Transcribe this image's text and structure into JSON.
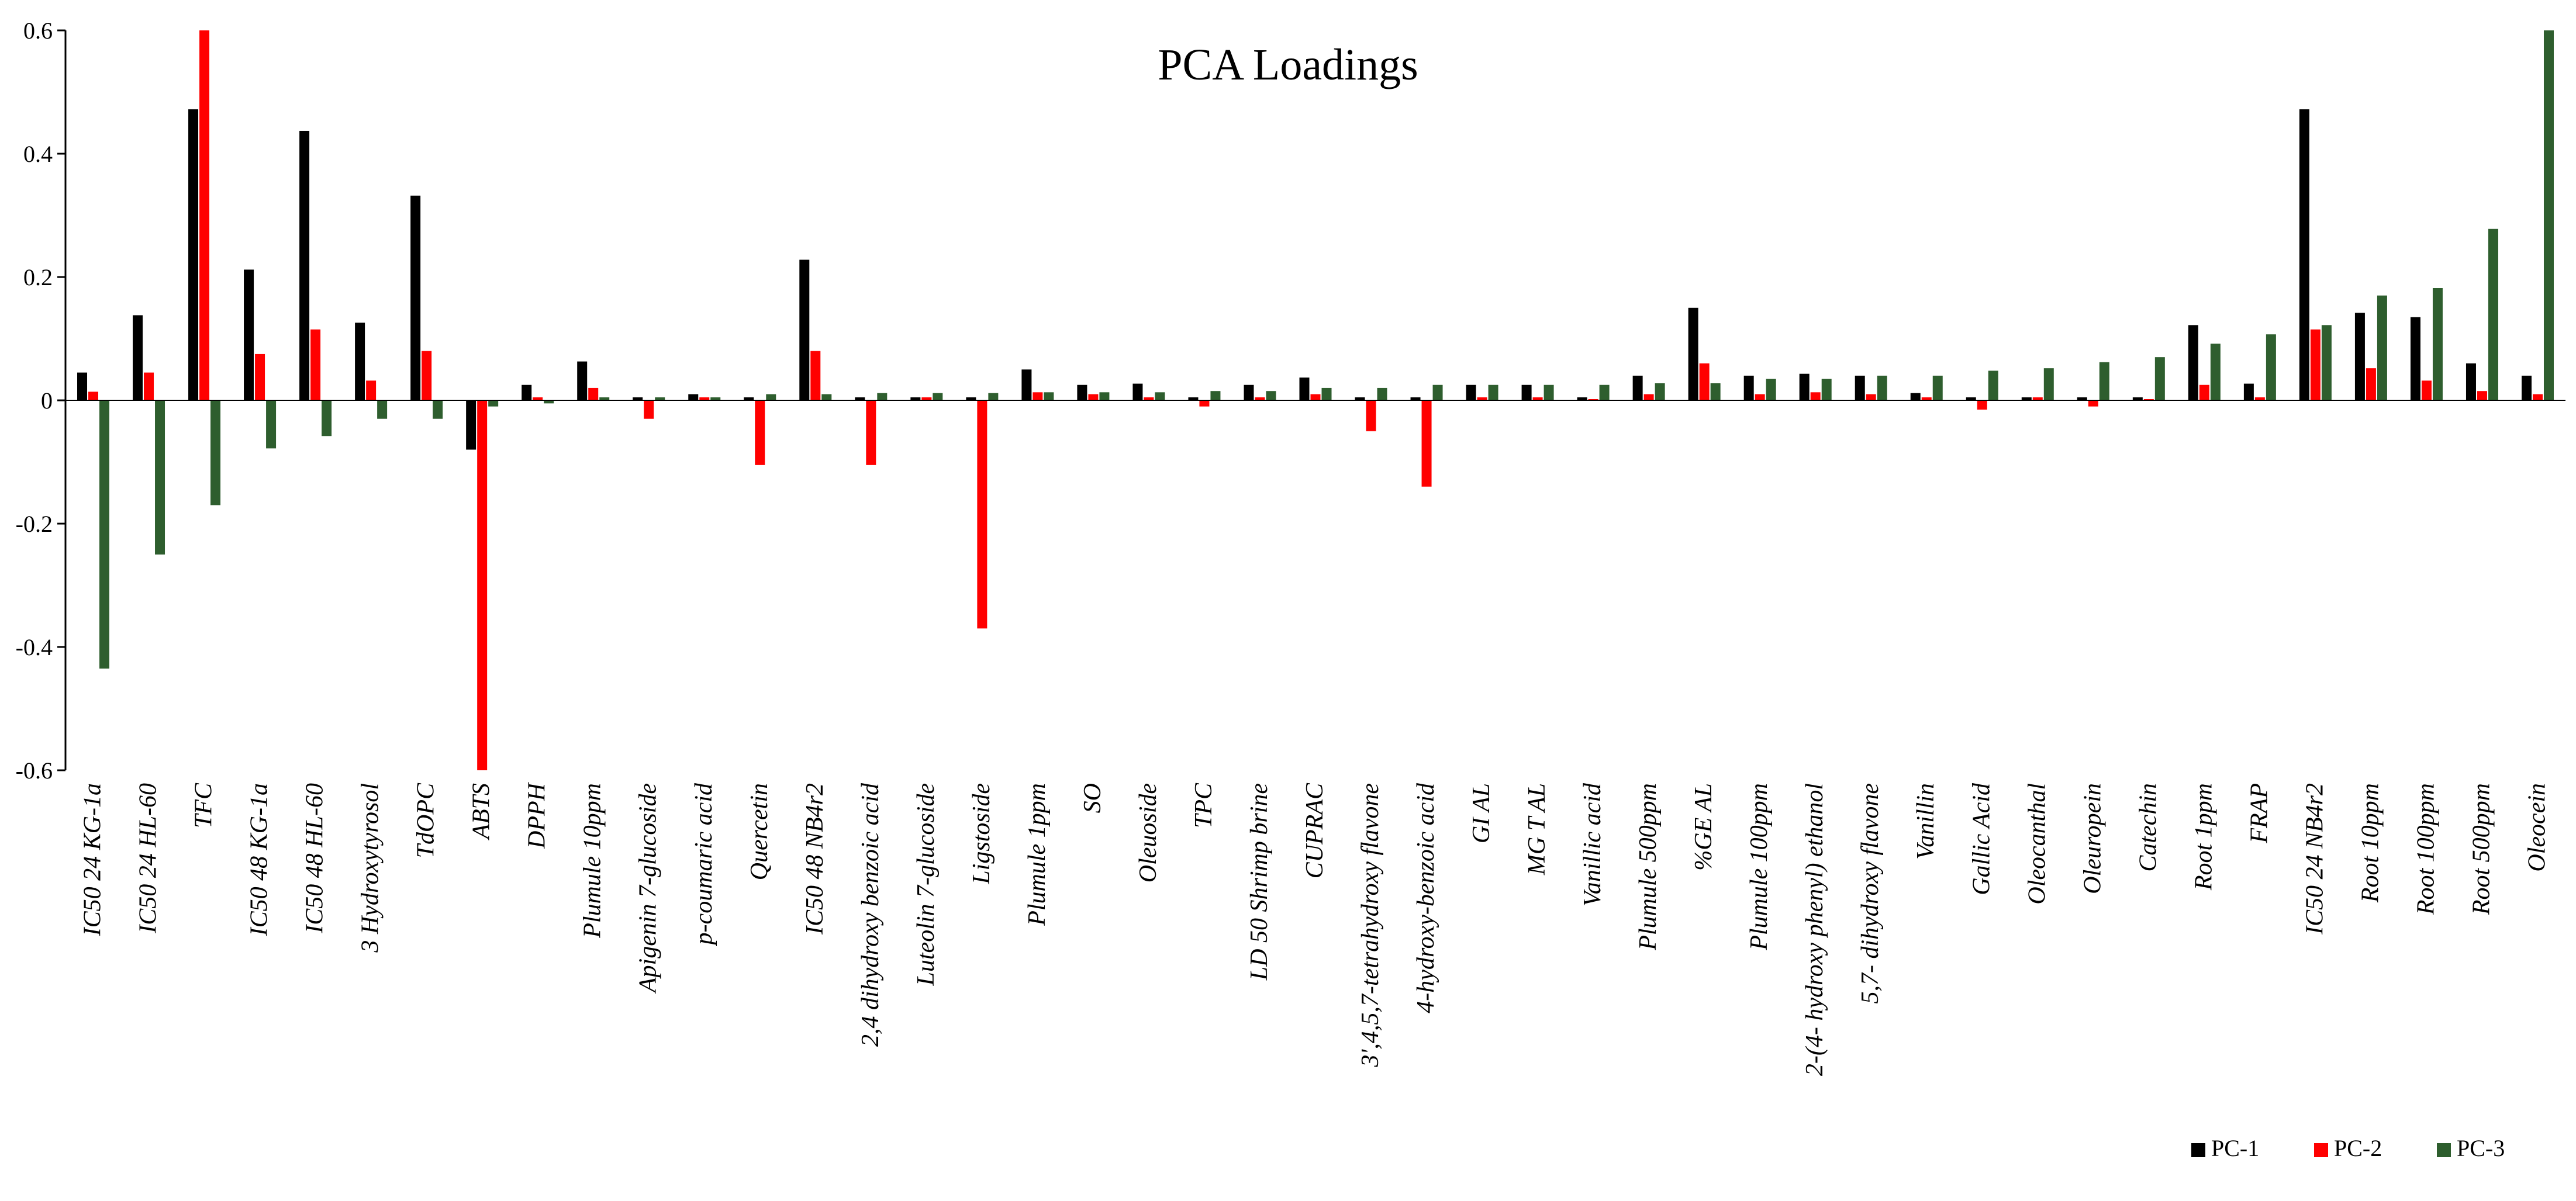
{
  "chart_data": {
    "type": "bar",
    "title": "PCA Loadings",
    "xlabel": "",
    "ylabel": "",
    "ylim": [
      -0.6,
      0.6
    ],
    "yticks": [
      "0.6",
      "0.4",
      "0.2",
      "0",
      "-0.2",
      "-0.4",
      "-0.6"
    ],
    "ytick_values": [
      0.6,
      0.4,
      0.2,
      0,
      -0.2,
      -0.4,
      -0.6
    ],
    "legend_position": "bottom-right",
    "categories": [
      "IC50 24 KG-1a",
      "IC50 24 HL-60",
      "TFC",
      "IC50 48 KG-1a",
      "IC50 48 HL-60",
      "3 Hydroxytyrosol",
      "TdOPC",
      "ABTS",
      "DPPH",
      "Plumule 10ppm",
      "Apigenin 7-glucoside",
      "p-coumaric acid",
      "Quercetin",
      "IC50 48 NB4r2",
      "2,4 dihydroxy benzoic acid",
      "Luteolin 7-glucoside",
      "Ligstoside",
      "Plumule 1ppm",
      "SO",
      "Oleuoside",
      "TPC",
      "LD 50 Shrimp brine",
      "CUPRAC",
      "3',4,5,7-tetrahydroxy flavone",
      "4-hydroxy-benzoic acid",
      "GI AL",
      "MG T AL",
      "Vanillic acid",
      "Plumule 500ppm",
      "%GE AL",
      "Plumule 100ppm",
      "2-(4- hydroxy phenyl) ethanol",
      "5,7- dihydroxy flavone",
      "Vanillin",
      "Gallic Acid",
      "Oleocanthal",
      "Oleuropein",
      "Catechin",
      "Root 1ppm",
      "FRAP",
      "IC50 24 NB4r2",
      "Root 10ppm",
      "Root 100ppm",
      "Root 500ppm",
      "Oleocein"
    ],
    "series": [
      {
        "name": "PC-1",
        "color": "#000000",
        "values": [
          0.045,
          0.138,
          0.472,
          0.212,
          0.437,
          0.126,
          0.332,
          -0.08,
          0.025,
          0.063,
          0.005,
          0.01,
          0.005,
          0.228,
          0.005,
          0.005,
          0.005,
          0.05,
          0.025,
          0.027,
          0.005,
          0.025,
          0.037,
          0.005,
          0.005,
          0.025,
          0.025,
          0.005,
          0.04,
          0.15,
          0.04,
          0.043,
          0.04,
          0.012,
          0.005,
          0.005,
          0.005,
          0.005,
          0.122,
          0.027,
          0.472,
          0.142,
          0.135,
          0.06,
          0.04
        ]
      },
      {
        "name": "PC-2",
        "color": "#ff0000",
        "values": [
          0.014,
          0.045,
          0.6,
          0.075,
          0.115,
          0.032,
          0.08,
          -0.6,
          0.005,
          0.02,
          -0.03,
          0.005,
          -0.105,
          0.08,
          -0.105,
          0.005,
          -0.37,
          0.013,
          0.01,
          0.005,
          -0.01,
          0.005,
          0.01,
          -0.05,
          -0.14,
          0.005,
          0.005,
          0.0,
          0.01,
          0.06,
          0.01,
          0.013,
          0.01,
          0.005,
          -0.015,
          0.005,
          -0.01,
          0.0,
          0.025,
          0.005,
          0.115,
          0.052,
          0.032,
          0.015,
          0.01
        ]
      },
      {
        "name": "PC-3",
        "color": "#2e5e2e",
        "values": [
          -0.435,
          -0.25,
          -0.17,
          -0.078,
          -0.058,
          -0.03,
          -0.03,
          -0.01,
          -0.005,
          0.005,
          0.005,
          0.005,
          0.01,
          0.01,
          0.012,
          0.012,
          0.012,
          0.013,
          0.013,
          0.013,
          0.015,
          0.015,
          0.02,
          0.02,
          0.025,
          0.025,
          0.025,
          0.025,
          0.028,
          0.028,
          0.035,
          0.035,
          0.04,
          0.04,
          0.048,
          0.052,
          0.062,
          0.07,
          0.092,
          0.107,
          0.122,
          0.17,
          0.182,
          0.278,
          0.6
        ]
      }
    ]
  }
}
